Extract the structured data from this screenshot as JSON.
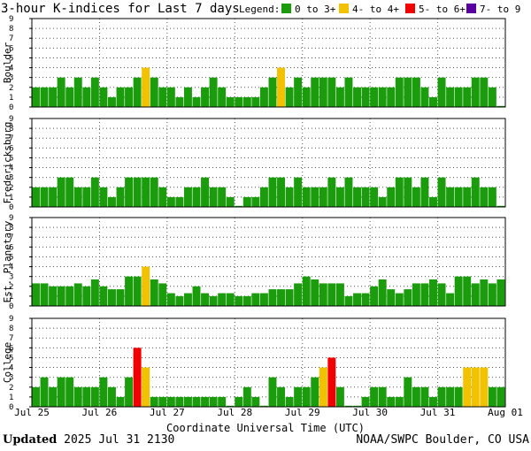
{
  "title": "3-hour K-indices for Last 7 days",
  "legend": {
    "label": "Legend:",
    "items": [
      {
        "label": "0 to 3+",
        "color": "#1a9c0c"
      },
      {
        "label": "4- to 4+",
        "color": "#f2c200"
      },
      {
        "label": "5- to 6+",
        "color": "#f20000"
      },
      {
        "label": "7- to 9",
        "color": "#5a00a0"
      }
    ]
  },
  "footer": {
    "updated_label": "Updated",
    "updated_value": "2025 Jul 31 2130",
    "source": "NOAA/SWPC Boulder, CO USA"
  },
  "chart_data": {
    "type": "bar",
    "xlabel": "Coordinate Universal Time (UTC)",
    "x_ticks": [
      "Jul 25",
      "Jul 26",
      "Jul 27",
      "Jul 28",
      "Jul 29",
      "Jul 30",
      "Jul 31",
      "Aug 01"
    ],
    "ylim": [
      0,
      9
    ],
    "y_ticks": [
      0,
      1,
      2,
      3,
      4,
      5,
      6,
      7,
      8,
      9
    ],
    "grid": true,
    "panels": [
      {
        "name": "Boulder",
        "values": [
          2,
          2,
          2,
          3,
          2,
          3,
          2,
          3,
          2,
          1,
          2,
          2,
          3,
          4,
          3,
          2,
          2,
          1,
          2,
          1,
          2,
          3,
          2,
          1,
          1,
          1,
          1,
          2,
          3,
          4,
          2,
          3,
          2,
          3,
          3,
          3,
          2,
          3,
          2,
          2,
          2,
          2,
          2,
          3,
          3,
          3,
          2,
          1,
          3,
          2,
          2,
          2,
          3,
          3,
          2,
          0
        ]
      },
      {
        "name": "Fredericksburg",
        "values": [
          2,
          2,
          2,
          3,
          3,
          2,
          2,
          3,
          2,
          1,
          2,
          3,
          3,
          3,
          3,
          2,
          1,
          1,
          2,
          2,
          3,
          2,
          2,
          1,
          0,
          1,
          1,
          2,
          3,
          3,
          2,
          3,
          2,
          2,
          2,
          3,
          2,
          3,
          2,
          2,
          2,
          1,
          2,
          3,
          3,
          2,
          3,
          1,
          3,
          2,
          2,
          2,
          3,
          2,
          2,
          0
        ]
      },
      {
        "name": "Est. Planetary",
        "values": [
          2.3,
          2.3,
          2,
          2,
          2,
          2.3,
          2,
          2.7,
          2,
          1.7,
          1.7,
          3,
          3,
          4,
          2.7,
          2.3,
          1.3,
          1,
          1.3,
          2,
          1.3,
          1,
          1.3,
          1.3,
          1,
          1,
          1.3,
          1.3,
          1.7,
          1.7,
          1.7,
          2.3,
          3,
          2.7,
          2.3,
          2.3,
          2.3,
          1,
          1.3,
          1.3,
          2,
          2.7,
          1.7,
          1.3,
          1.7,
          2.3,
          2.3,
          2.7,
          2.3,
          1.3,
          3,
          3,
          2.3,
          2.7,
          2.3,
          2.7
        ]
      },
      {
        "name": "College",
        "values": [
          2,
          3,
          2,
          3,
          3,
          2,
          2,
          2,
          3,
          2,
          1,
          3,
          6,
          4,
          1,
          1,
          1,
          1,
          1,
          1,
          1,
          1,
          1,
          0,
          1,
          2,
          1,
          0,
          3,
          2,
          1,
          2,
          2,
          3,
          4,
          5,
          2,
          0,
          0,
          1,
          2,
          2,
          1,
          1,
          3,
          2,
          2,
          1,
          2,
          2,
          2,
          4,
          4,
          4,
          2,
          2
        ]
      }
    ]
  }
}
